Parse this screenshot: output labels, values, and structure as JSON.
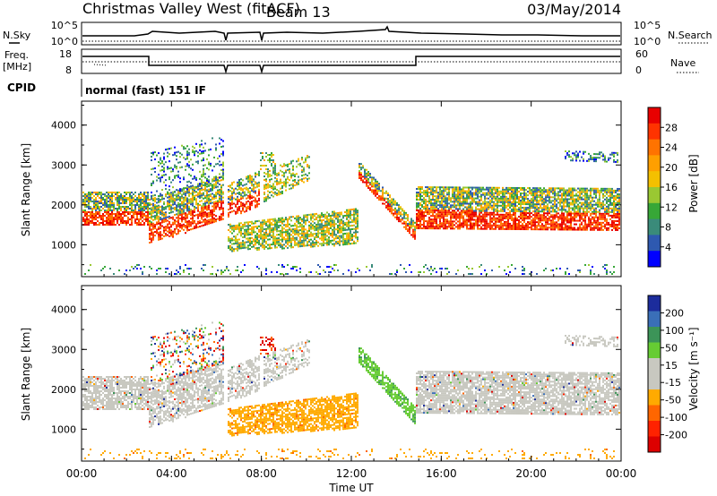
{
  "header": {
    "title": "Christmas Valley West (fitACF)",
    "beam": "Beam 13",
    "date": "03/May/2014"
  },
  "top_panels": {
    "nsky_label": "N.Sky",
    "nsky_ticks": [
      "10^5",
      "10^0"
    ],
    "nsearch_label": "N.Search",
    "nsearch_ticks": [
      "10^5",
      "10^0"
    ],
    "freq_label": "Freq.",
    "freq_unit": "[MHz]",
    "freq_ticks": [
      "18",
      "8"
    ],
    "nave_label": "Nave",
    "nave_ticks": [
      "60",
      "0"
    ],
    "cpid_label": "CPID",
    "cpid_text": "normal (fast) 151 IF"
  },
  "chart_data": [
    {
      "type": "heatmap",
      "name": "power-panel",
      "ylabel": "Slant Range [km]",
      "yticks": [
        "4000",
        "3000",
        "2000",
        "1000"
      ],
      "ylim": [
        200,
        4600
      ],
      "colorbar": {
        "label": "Power [dB]",
        "ticks": [
          "28",
          "24",
          "20",
          "16",
          "12",
          "8",
          "4"
        ],
        "colors": [
          "#e80000",
          "#ff3300",
          "#ff7300",
          "#ff9f00",
          "#f4c000",
          "#9ac832",
          "#37a737",
          "#3a8b7a",
          "#2e59b0",
          "#0000ff"
        ]
      }
    },
    {
      "type": "heatmap",
      "name": "velocity-panel",
      "ylabel": "Slant Range [km]",
      "yticks": [
        "4000",
        "3000",
        "2000",
        "1000"
      ],
      "ylim": [
        200,
        4600
      ],
      "colorbar": {
        "label": "Velocity [m s⁻¹]",
        "ticks": [
          "200",
          "100",
          "50",
          "15",
          "-15",
          "-50",
          "-100",
          "-200"
        ],
        "colors": [
          "#1c2c9c",
          "#3a6fb8",
          "#3c9458",
          "#66cc33",
          "#c8c8c0",
          "#c8c8c0",
          "#ffaa00",
          "#ff6600",
          "#ff2200",
          "#dd0000"
        ]
      }
    }
  ],
  "time_axis": {
    "label": "Time UT",
    "ticks": [
      "00:00",
      "04:00",
      "08:00",
      "12:00",
      "16:00",
      "20:00",
      "00:00"
    ]
  }
}
